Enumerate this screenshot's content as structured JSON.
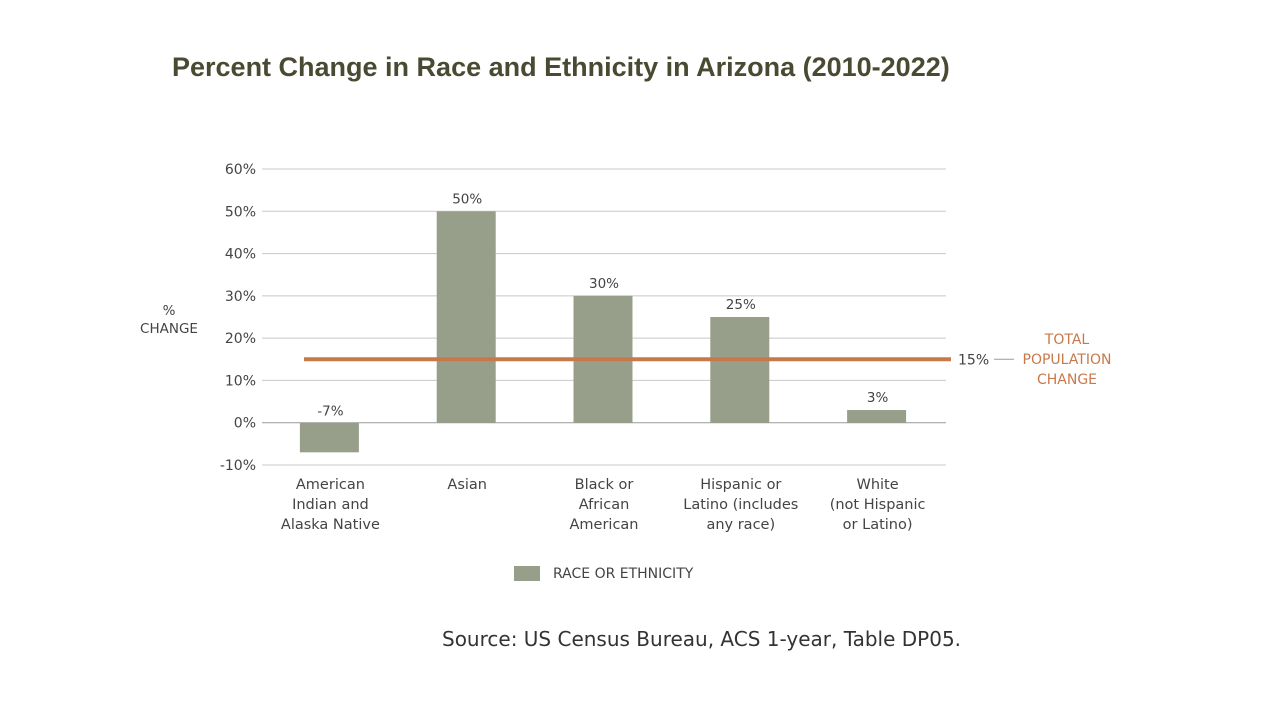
{
  "title": "Percent Change in Race and Ethnicity in Arizona (2010-2022)",
  "source": "Source: US Census Bureau, ACS 1-year, Table DP05.",
  "colors": {
    "bar": "#979f8a",
    "reference_line": "#c8794a",
    "grid": "#c8c8c8"
  },
  "chart_data": {
    "type": "bar",
    "title": "Percent Change in Race and Ethnicity in Arizona (2010-2022)",
    "ylabel": [
      "%",
      "CHANGE"
    ],
    "ylim": [
      -10,
      60
    ],
    "yticks": [
      -10,
      0,
      10,
      20,
      30,
      40,
      50,
      60
    ],
    "ytick_labels": [
      "-10%",
      "0%",
      "10%",
      "20%",
      "30%",
      "40%",
      "50%",
      "60%"
    ],
    "grid": true,
    "categories": [
      [
        "American",
        "Indian and",
        "Alaska Native"
      ],
      [
        "Asian"
      ],
      [
        "Black or",
        "African",
        "American"
      ],
      [
        "Hispanic or",
        "Latino (includes",
        "any race)"
      ],
      [
        "White",
        "(not Hispanic",
        "or Latino)"
      ]
    ],
    "series": [
      {
        "name": "RACE OR ETHNICITY",
        "values": [
          -7,
          50,
          30,
          25,
          3
        ],
        "data_labels": [
          "-7%",
          "50%",
          "30%",
          "25%",
          "3%"
        ]
      }
    ],
    "reference_line": {
      "value": 15,
      "value_label": "15%",
      "label": [
        "TOTAL",
        "POPULATION",
        "CHANGE"
      ]
    },
    "legend_position": "bottom"
  }
}
